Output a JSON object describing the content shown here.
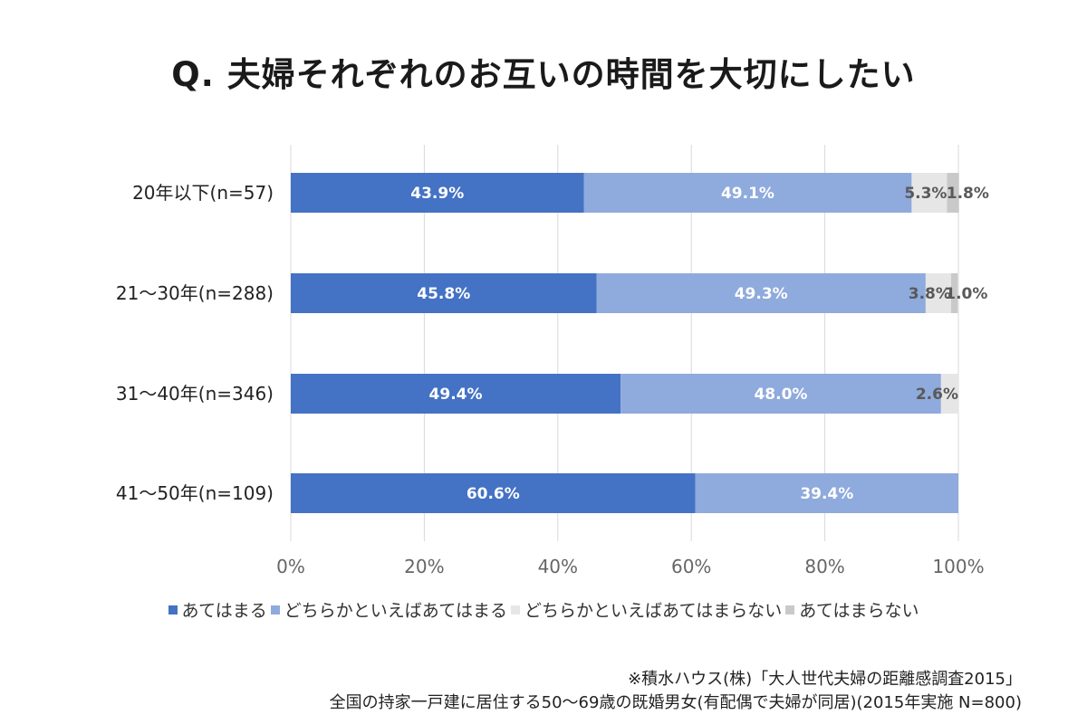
{
  "title": "Q. 夫婦それぞれのお互いの時間を大切にしたい",
  "notes": {
    "line1": "※積水ハウス(株)「大人世代夫婦の距離感調査2015」",
    "line2": "全国の持家一戸建に居住する50〜69歳の既婚男女(有配偶で夫婦が同居)(2015年実施 N=800)"
  },
  "colors": {
    "series": [
      "#4472c4",
      "#8faadc",
      "#e7e6e6",
      "#c9c9c9"
    ],
    "value_label_inside": "#ffffff",
    "value_label_light": "#595959",
    "grid": "#d9d9d9"
  },
  "chart_data": {
    "type": "bar",
    "orientation": "horizontal",
    "stacked": true,
    "categories": [
      "20年以下(n=57)",
      "21〜30年(n=288)",
      "31〜40年(n=346)",
      "41〜50年(n=109)"
    ],
    "series": [
      {
        "name": "あてはまる",
        "values": [
          43.9,
          45.8,
          49.4,
          60.6
        ],
        "labels": [
          "43.9%",
          "45.8%",
          "49.4%",
          "60.6%"
        ]
      },
      {
        "name": "どちらかといえばあてはまる",
        "values": [
          49.1,
          49.3,
          48.0,
          39.4
        ],
        "labels": [
          "49.1%",
          "49.3%",
          "48.0%",
          "39.4%"
        ]
      },
      {
        "name": "どちらかといえばあてはまらない",
        "values": [
          5.3,
          3.8,
          2.6,
          0
        ],
        "labels": [
          "5.3%",
          "3.8%",
          "2.6%",
          ""
        ]
      },
      {
        "name": "あてはまらない",
        "values": [
          1.8,
          1.0,
          0,
          0
        ],
        "labels": [
          "1.8%",
          "1.0%",
          "",
          ""
        ]
      }
    ],
    "xlim": [
      0,
      100
    ],
    "xticks": [
      "0%",
      "20%",
      "40%",
      "60%",
      "80%",
      "100%"
    ],
    "grid": true,
    "legend_position": "bottom"
  }
}
